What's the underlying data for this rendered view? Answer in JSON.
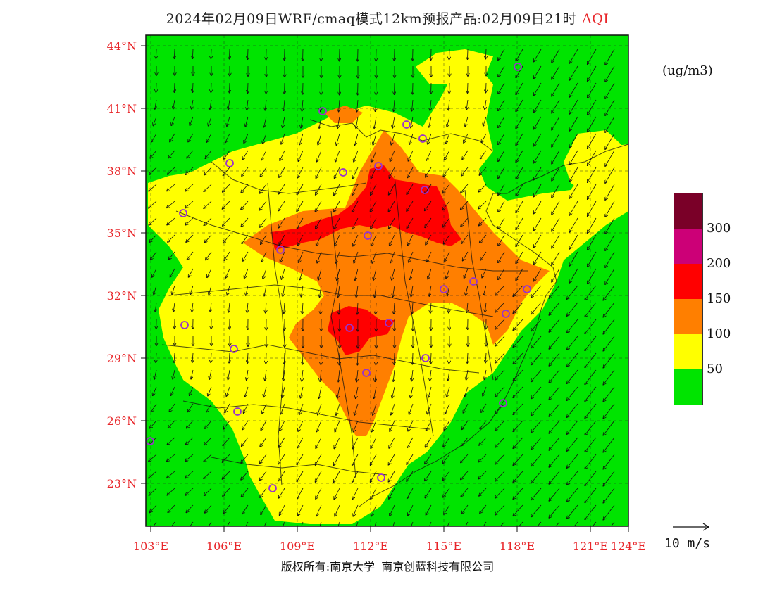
{
  "header": {
    "title": "2024年02月09日WRF/cmaq模式12km预报产品:02月09日21时",
    "product": "AQI"
  },
  "unit_label": "(ug/m3)",
  "legend": {
    "colors": [
      "#7a0028",
      "#cc0077",
      "#ff0000",
      "#ff7f00",
      "#ffff00",
      "#00e400"
    ],
    "labels": [
      "300",
      "200",
      "150",
      "100",
      "50"
    ]
  },
  "wind_reference": {
    "label": "10 m/s"
  },
  "axes": {
    "latitude_labels": [
      "44°N",
      "41°N",
      "38°N",
      "35°N",
      "32°N",
      "29°N",
      "26°N",
      "23°N"
    ],
    "longitude_labels": [
      "103°E",
      "106°E",
      "109°E",
      "112°E",
      "115°E",
      "118°E",
      "121°E",
      "124°E"
    ]
  },
  "credit": {
    "left": "版权所有:南京大学",
    "right": "南京创蓝科技有限公司"
  },
  "map_colors": {
    "good": "#00e400",
    "moderate": "#ffff00",
    "usg": "#ff7f00",
    "unhealthy": "#ff0000",
    "station_marker": "#9933cc"
  }
}
